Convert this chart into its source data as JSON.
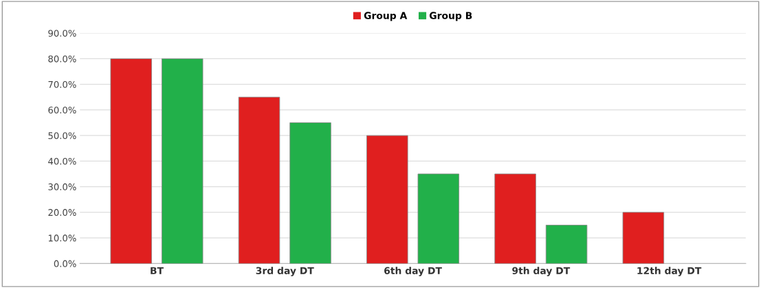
{
  "chart_data": {
    "type": "bar",
    "categories": [
      "BT",
      "3rd day DT",
      "6th day DT",
      "9th day DT",
      "12th day DT"
    ],
    "series": [
      {
        "name": "Group A",
        "color": "#e01f1f",
        "values": [
          80,
          65,
          50,
          35,
          20
        ]
      },
      {
        "name": "Group B",
        "color": "#22b04a",
        "values": [
          80,
          55,
          35,
          15,
          null
        ]
      }
    ],
    "ylim": [
      0,
      90
    ],
    "yticks": [
      {
        "value": 0,
        "label": "0.0%"
      },
      {
        "value": 10,
        "label": "10.0%"
      },
      {
        "value": 20,
        "label": "20.0%"
      },
      {
        "value": 30,
        "label": "30.0%"
      },
      {
        "value": 40,
        "label": "40.0%"
      },
      {
        "value": 50,
        "label": "50.0%"
      },
      {
        "value": 60,
        "label": "60.0%"
      },
      {
        "value": 70,
        "label": "70.0%"
      },
      {
        "value": 80,
        "label": "80.0%"
      },
      {
        "value": 90,
        "label": "90.0%"
      }
    ],
    "grid": "y",
    "legend": "top"
  }
}
